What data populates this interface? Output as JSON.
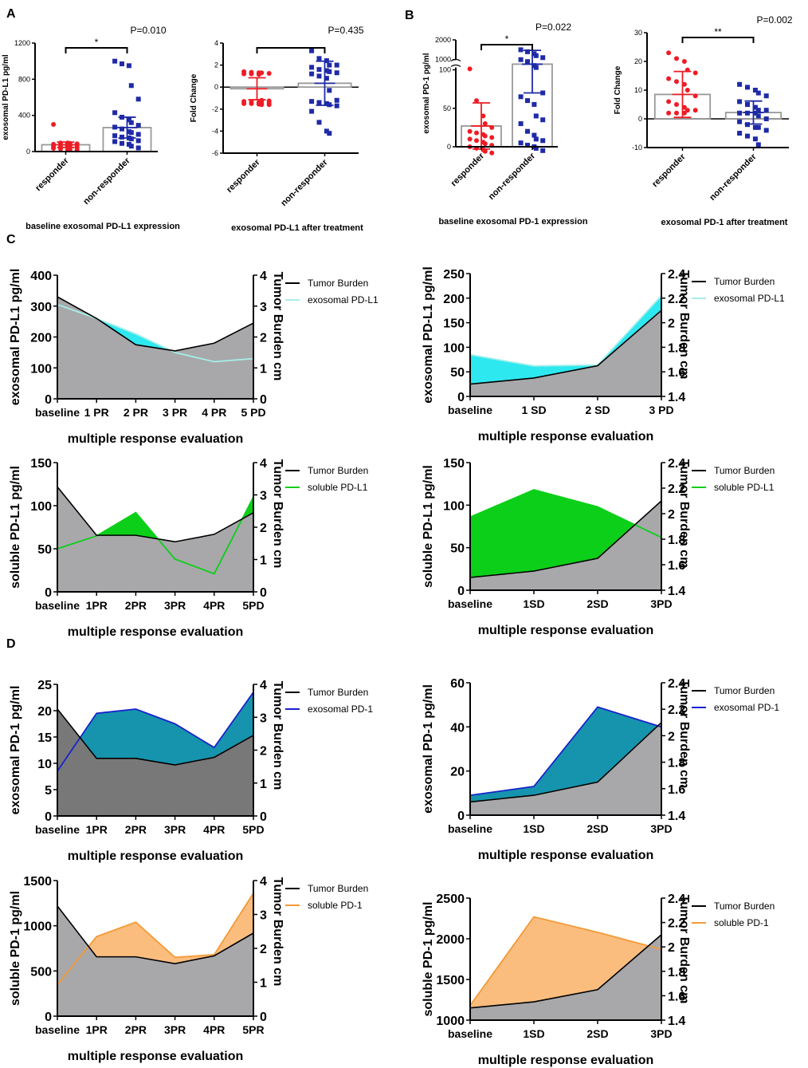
{
  "panel_letters": [
    "A",
    "B",
    "C",
    "D"
  ],
  "colors": {
    "responder": "#ee1c25",
    "nonresponder": "#1f2aa6",
    "tumor_fill": "#a8a8ab",
    "tumor_fill_dark": "#787878",
    "cyan": "#2ee8f0",
    "cyan_line": "#a6efe9",
    "green": "#0ccf1a",
    "teal": "#1694ad",
    "blue_line": "#1822cc",
    "orange": "#fbbd7e",
    "orange_line": "#f39a37"
  },
  "chart_data": [
    {
      "id": "A1",
      "type": "scatter",
      "categories": [
        "responder",
        "non-responder"
      ],
      "ylabel": "exosomal PD-L1 pg/ml",
      "xlabel": "baseline exosomal PD-L1 expression",
      "ylim": [
        0,
        1200
      ],
      "yticks": [
        0,
        400,
        800,
        1200
      ],
      "means": [
        75,
        265
      ],
      "sd": [
        30,
        115
      ],
      "significance": "*",
      "pvalue": "P=0.010",
      "series": [
        {
          "name": "responder",
          "values": [
            300,
            95,
            95,
            90,
            85,
            80,
            75,
            70,
            65,
            60,
            55,
            52,
            50,
            45,
            40,
            35,
            30,
            25,
            20,
            15
          ]
        },
        {
          "name": "non-responder",
          "values": [
            1000,
            970,
            950,
            730,
            580,
            430,
            380,
            350,
            320,
            290,
            270,
            250,
            220,
            210,
            190,
            175,
            160,
            150,
            140,
            120,
            110,
            90,
            80,
            60,
            40
          ]
        }
      ]
    },
    {
      "id": "A2",
      "type": "scatter",
      "categories": [
        "responder",
        "non-responder"
      ],
      "ylabel": "Fold Change",
      "xlabel": "exosomal PD-L1 after treatment",
      "ylim": [
        -6,
        4
      ],
      "yticks": [
        -6,
        -4,
        -2,
        0,
        2,
        4
      ],
      "means": [
        -0.15,
        0.35
      ],
      "sd": [
        1.0,
        2.0
      ],
      "significance": "",
      "pvalue": "P=0.435",
      "series": [
        {
          "name": "responder",
          "values": [
            1.4,
            1.35,
            1.3,
            1.3,
            1.25,
            1.2,
            1.2,
            1.15,
            -1.2,
            -1.25,
            -1.3,
            -1.35,
            -1.4,
            -1.4,
            -1.45,
            -1.5,
            -1.5,
            -1.55,
            -1.6,
            -1.6
          ]
        },
        {
          "name": "non-responder",
          "values": [
            3.3,
            2.6,
            2.4,
            2.0,
            2.0,
            1.8,
            1.6,
            1.5,
            1.4,
            1.3,
            1.2,
            1.0,
            0.8,
            -0.3,
            -1.2,
            -1.3,
            -1.4,
            -1.5,
            -1.6,
            -1.7,
            -2.2,
            -3.2,
            -4.0,
            -4.2
          ]
        }
      ]
    },
    {
      "id": "B1",
      "type": "scatter",
      "categories": [
        "responder",
        "non-responder"
      ],
      "ylabel": "exosomal PD-1 pg/ml",
      "xlabel": "baseline exosomal PD-1 expression",
      "ylim": [
        0,
        2000
      ],
      "axis_break": [
        100,
        700
      ],
      "yticks": [
        0,
        50,
        100,
        1000,
        2000
      ],
      "means": [
        27,
        770
      ],
      "sd": [
        30,
        700
      ],
      "significance": "*",
      "pvalue": "P=0.022",
      "series": [
        {
          "name": "responder",
          "values": [
            530,
            60,
            40,
            30,
            25,
            20,
            18,
            16,
            14,
            12,
            10,
            8,
            6,
            4,
            2,
            0,
            -2,
            -4,
            -6,
            -8
          ]
        },
        {
          "name": "non-responder",
          "values": [
            1500,
            1400,
            1300,
            1200,
            1100,
            1000,
            900,
            700,
            600,
            70,
            65,
            60,
            55,
            40,
            35,
            30,
            20,
            15,
            10,
            8,
            5,
            2,
            0,
            -2,
            -5
          ]
        }
      ]
    },
    {
      "id": "B2",
      "type": "scatter",
      "categories": [
        "responder",
        "non-responder"
      ],
      "ylabel": "Fold Change",
      "xlabel": "exosomal PD-1 after treatment",
      "ylim": [
        -10,
        30
      ],
      "yticks": [
        -10,
        0,
        10,
        20,
        30
      ],
      "means": [
        8.5,
        2.2
      ],
      "sd": [
        8.0,
        4.0
      ],
      "significance": "**",
      "pvalue": "P=0.002",
      "series": [
        {
          "name": "responder",
          "values": [
            23,
            21,
            20,
            17,
            16,
            14,
            13,
            12,
            10,
            8,
            6,
            5,
            4,
            3,
            3,
            2,
            2,
            2
          ]
        },
        {
          "name": "non-responder",
          "values": [
            12,
            11,
            10,
            9,
            8,
            6,
            5,
            4,
            3,
            3,
            2,
            2,
            2,
            1,
            0,
            -1,
            -2,
            -3,
            -3,
            -4,
            -5,
            -6,
            -7,
            -9
          ]
        }
      ]
    },
    {
      "id": "C1",
      "type": "area",
      "overlay": "cyan",
      "categories": [
        "baseline",
        "1 PR",
        "2 PR",
        "3 PR",
        "4 PR",
        "5 PD"
      ],
      "ylabel": "exosomal PD-L1 pg/ml",
      "ylabel2": "Tumor Burden cm",
      "xlabel": "multiple response evaluation",
      "ylim": [
        0,
        400
      ],
      "yticks": [
        0,
        100,
        200,
        300,
        400
      ],
      "y2lim": [
        0,
        4
      ],
      "y2ticks": [
        0,
        1,
        2,
        3,
        4
      ],
      "series": [
        {
          "name": "Tumor Burden",
          "axis": "right",
          "values": [
            3.3,
            2.6,
            1.75,
            1.55,
            1.8,
            2.45
          ]
        },
        {
          "name": "exosomal PD-L1",
          "axis": "left",
          "values": [
            305,
            260,
            210,
            150,
            120,
            130
          ]
        }
      ]
    },
    {
      "id": "C2",
      "type": "area",
      "overlay": "cyan",
      "categories": [
        "baseline",
        "1 SD",
        "2 SD",
        "3 PD"
      ],
      "ylabel": "exosomal PD-L1 pg/ml",
      "ylabel2": "Tumor Burden cm",
      "xlabel": "multiple response evaluation",
      "ylim": [
        0,
        250
      ],
      "yticks": [
        0,
        50,
        100,
        150,
        200,
        250
      ],
      "y2lim": [
        1.4,
        2.4
      ],
      "y2ticks": [
        1.4,
        1.6,
        1.8,
        2.0,
        2.2,
        2.4
      ],
      "series": [
        {
          "name": "Tumor Burden",
          "axis": "right",
          "values": [
            1.5,
            1.55,
            1.65,
            2.1
          ]
        },
        {
          "name": "exosomal PD-L1",
          "axis": "left",
          "values": [
            85,
            62,
            64,
            205
          ]
        }
      ]
    },
    {
      "id": "C3",
      "type": "area",
      "overlay": "green",
      "categories": [
        "baseline",
        "1PR",
        "2PR",
        "3PR",
        "4PR",
        "5PD"
      ],
      "ylabel": "soluble PD-L1 pg/ml",
      "ylabel2": "Tumor Burden cm",
      "xlabel": "multiple response evaluation",
      "ylim": [
        0,
        150
      ],
      "yticks": [
        0,
        50,
        100,
        150
      ],
      "y2lim": [
        0,
        4
      ],
      "y2ticks": [
        0,
        1,
        2,
        3,
        4
      ],
      "series": [
        {
          "name": "Tumor Burden",
          "axis": "right",
          "values": [
            3.25,
            1.75,
            1.75,
            1.55,
            1.78,
            2.45
          ]
        },
        {
          "name": "soluble PD-L1",
          "axis": "left",
          "values": [
            50,
            65,
            92,
            38,
            21,
            110
          ]
        }
      ]
    },
    {
      "id": "C4",
      "type": "area",
      "overlay": "green",
      "categories": [
        "baseline",
        "1SD",
        "2SD",
        "3PD"
      ],
      "ylabel": "soluble PD-L1 pg/ml",
      "ylabel2": "Tumor Burden cm",
      "xlabel": "multiple response evaluation",
      "ylim": [
        0,
        150
      ],
      "yticks": [
        0,
        50,
        100,
        150
      ],
      "y2lim": [
        1.4,
        2.4
      ],
      "y2ticks": [
        1.4,
        1.6,
        1.8,
        2.0,
        2.2,
        2.4
      ],
      "series": [
        {
          "name": "Tumor Burden",
          "axis": "right",
          "values": [
            1.5,
            1.55,
            1.65,
            2.1
          ]
        },
        {
          "name": "soluble PD-L1",
          "axis": "left",
          "values": [
            86,
            118,
            98,
            62
          ]
        }
      ]
    },
    {
      "id": "D1",
      "type": "area",
      "overlay": "teal",
      "categories": [
        "baseline",
        "1PR",
        "2PR",
        "3PR",
        "4PR",
        "5PD"
      ],
      "ylabel": "exosomal PD-1 pg/ml",
      "ylabel2": "Tumor Burden cm",
      "xlabel": "multiple response evaluation",
      "ylim": [
        0,
        25
      ],
      "yticks": [
        0,
        5,
        10,
        15,
        20,
        25
      ],
      "y2lim": [
        0,
        4
      ],
      "y2ticks": [
        0,
        1,
        2,
        3,
        4
      ],
      "series": [
        {
          "name": "Tumor Burden",
          "axis": "right",
          "values": [
            3.25,
            1.75,
            1.75,
            1.55,
            1.78,
            2.45
          ]
        },
        {
          "name": "exosomal PD-1",
          "axis": "left",
          "values": [
            8.5,
            19.5,
            20.3,
            17.5,
            13,
            23.5
          ]
        }
      ]
    },
    {
      "id": "D2",
      "type": "area",
      "overlay": "teal",
      "categories": [
        "baseline",
        "1SD",
        "2SD",
        "3PD"
      ],
      "ylabel": "exosomal PD-1 pg/ml",
      "ylabel2": "Tumor Burden cm",
      "xlabel": "multiple response evaluation",
      "ylim": [
        0,
        60
      ],
      "yticks": [
        0,
        20,
        40,
        60
      ],
      "y2lim": [
        1.4,
        2.4
      ],
      "y2ticks": [
        1.4,
        1.6,
        1.8,
        2.0,
        2.2,
        2.4
      ],
      "series": [
        {
          "name": "Tumor Burden",
          "axis": "right",
          "values": [
            1.5,
            1.55,
            1.65,
            2.1
          ]
        },
        {
          "name": "exosomal PD-1",
          "axis": "left",
          "values": [
            9,
            13,
            49,
            40
          ]
        }
      ]
    },
    {
      "id": "D3",
      "type": "area",
      "overlay": "orange",
      "categories": [
        "baseline",
        "1PR",
        "2PR",
        "3PR",
        "4PR",
        "5PR"
      ],
      "ylabel": "soluble PD-1 pg/ml",
      "ylabel2": "Tumor Burden cm",
      "xlabel": "multiple response evaluation",
      "ylim": [
        0,
        1500
      ],
      "yticks": [
        0,
        500,
        1000,
        1500
      ],
      "y2lim": [
        0,
        4
      ],
      "y2ticks": [
        0,
        1,
        2,
        3,
        4
      ],
      "series": [
        {
          "name": "Tumor Burden",
          "axis": "right",
          "values": [
            3.25,
            1.75,
            1.75,
            1.55,
            1.78,
            2.45
          ]
        },
        {
          "name": "soluble PD-1",
          "axis": "left",
          "values": [
            350,
            880,
            1040,
            650,
            680,
            1360
          ]
        }
      ]
    },
    {
      "id": "D4",
      "type": "area",
      "overlay": "orange",
      "categories": [
        "baseline",
        "1SD",
        "2SD",
        "3PD"
      ],
      "ylabel": "soluble PD-1 pg/ml",
      "ylabel2": "Tumor Burden cm",
      "xlabel": "multiple response evaluation",
      "ylim": [
        1000,
        2500
      ],
      "yticks": [
        1000,
        1500,
        2000,
        2500
      ],
      "y2lim": [
        1.4,
        2.4
      ],
      "y2ticks": [
        1.4,
        1.6,
        1.8,
        2.0,
        2.2,
        2.4
      ],
      "series": [
        {
          "name": "Tumor Burden",
          "axis": "right",
          "values": [
            1.5,
            1.55,
            1.65,
            2.1
          ]
        },
        {
          "name": "soluble PD-1",
          "axis": "left",
          "values": [
            1180,
            2270,
            2080,
            1870
          ]
        }
      ]
    }
  ]
}
